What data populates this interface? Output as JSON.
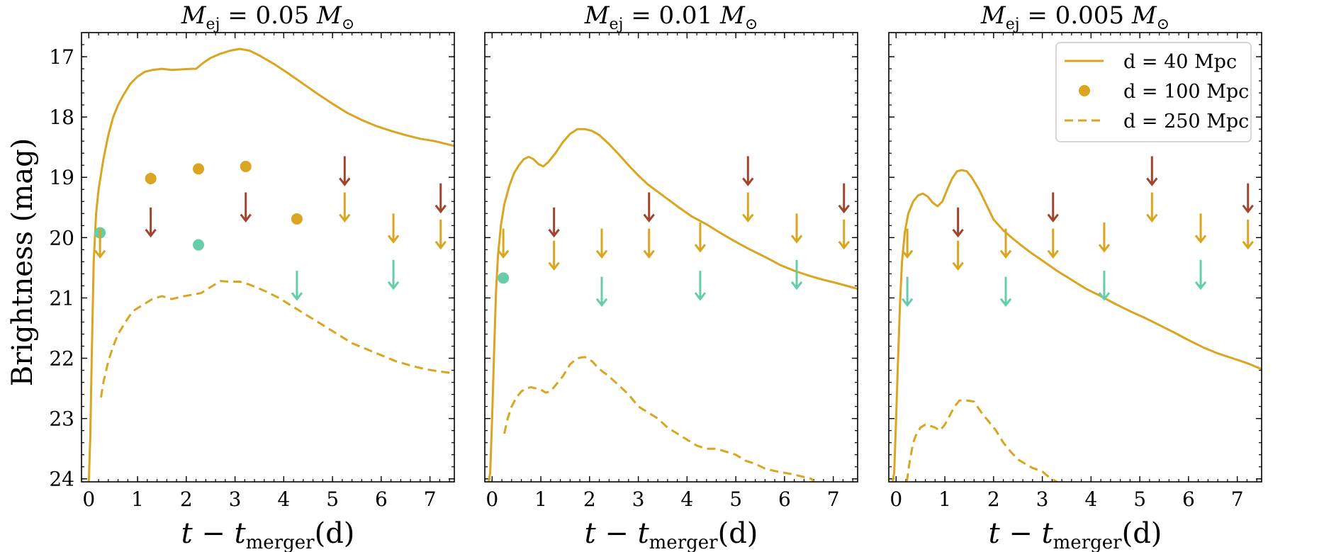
{
  "figure": {
    "ylabel": "Brightness (mag)",
    "xlabel": "t − t",
    "xlabel_sub": "merger",
    "xlabel_tail": "(d)"
  },
  "chart_data": [
    {
      "type": "line",
      "panel_title": {
        "var": "M",
        "sub": "ej",
        "value": " = 0.05 ",
        "unit": "M",
        "unit_sub": "⊙"
      },
      "xlim": [
        -0.15,
        7.5
      ],
      "ylim": [
        24.05,
        16.6
      ],
      "x_ticks": [
        0,
        1,
        2,
        3,
        4,
        5,
        6,
        7
      ],
      "y_ticks": [
        17,
        18,
        19,
        20,
        21,
        22,
        23,
        24
      ],
      "show_y_ticklabels": true,
      "show_ylabel": true,
      "legend": false,
      "series": [
        {
          "name": "d = 40 Mpc",
          "style": "solid",
          "color": "#DAA520",
          "x": [
            0.0,
            0.03,
            0.06,
            0.1,
            0.15,
            0.2,
            0.3,
            0.4,
            0.5,
            0.6,
            0.7,
            0.85,
            1.0,
            1.15,
            1.3,
            1.5,
            1.7,
            1.9,
            2.1,
            2.2,
            2.35,
            2.5,
            2.7,
            2.9,
            3.1,
            3.3,
            3.5,
            3.8,
            4.1,
            4.4,
            4.7,
            5.0,
            5.3,
            5.6,
            5.9,
            6.2,
            6.5,
            6.8,
            7.1,
            7.5
          ],
          "y": [
            24.05,
            23.3,
            22.0,
            20.4,
            19.6,
            19.2,
            18.7,
            18.3,
            18.0,
            17.8,
            17.65,
            17.45,
            17.33,
            17.25,
            17.22,
            17.2,
            17.22,
            17.21,
            17.2,
            17.2,
            17.1,
            17.02,
            16.95,
            16.9,
            16.87,
            16.9,
            16.98,
            17.12,
            17.28,
            17.45,
            17.62,
            17.78,
            17.93,
            18.05,
            18.15,
            18.23,
            18.3,
            18.36,
            18.4,
            18.48
          ]
        },
        {
          "name": "d = 250 Mpc",
          "style": "dashed",
          "color": "#DAA520",
          "x": [
            0.25,
            0.3,
            0.4,
            0.5,
            0.6,
            0.75,
            0.9,
            1.1,
            1.3,
            1.5,
            1.7,
            1.9,
            2.1,
            2.3,
            2.5,
            2.7,
            2.9,
            3.1,
            3.3,
            3.6,
            3.9,
            4.2,
            4.5,
            4.8,
            5.1,
            5.4,
            5.7,
            6.0,
            6.3,
            6.6,
            6.9,
            7.2,
            7.5
          ],
          "y": [
            22.65,
            22.4,
            22.05,
            21.8,
            21.6,
            21.4,
            21.22,
            21.12,
            21.02,
            20.97,
            21.02,
            20.98,
            20.95,
            20.92,
            20.82,
            20.72,
            20.73,
            20.73,
            20.78,
            20.88,
            21.0,
            21.15,
            21.3,
            21.45,
            21.6,
            21.75,
            21.85,
            21.95,
            22.05,
            22.12,
            22.18,
            22.22,
            22.25
          ]
        }
      ],
      "points": [
        {
          "name": "d = 100 Mpc",
          "color": "#DAA520",
          "x": [
            1.27,
            2.25,
            3.22,
            4.27
          ],
          "y": [
            19.02,
            18.86,
            18.82,
            19.69
          ]
        },
        {
          "name": "",
          "color": "#66CDAA",
          "x": [
            0.23,
            2.25
          ],
          "y": [
            19.92,
            20.12
          ]
        }
      ],
      "upper_limits": [
        {
          "color": "#A0452C",
          "x": [
            1.27,
            3.22,
            5.25,
            7.22
          ],
          "y": [
            19.5,
            19.25,
            18.65,
            19.1
          ]
        },
        {
          "color": "#DAA520",
          "x": [
            0.23,
            5.25,
            6.25,
            7.22
          ],
          "y": [
            19.85,
            19.25,
            19.6,
            19.7
          ]
        },
        {
          "color": "#66CDAA",
          "x": [
            4.27,
            6.25
          ],
          "y": [
            20.55,
            20.37
          ]
        }
      ]
    },
    {
      "type": "line",
      "panel_title": {
        "var": "M",
        "sub": "ej",
        "value": " = 0.01 ",
        "unit": "M",
        "unit_sub": "⊙"
      },
      "xlim": [
        -0.15,
        7.5
      ],
      "ylim": [
        24.05,
        16.6
      ],
      "x_ticks": [
        0,
        1,
        2,
        3,
        4,
        5,
        6,
        7
      ],
      "y_ticks": [
        17,
        18,
        19,
        20,
        21,
        22,
        23,
        24
      ],
      "show_y_ticklabels": false,
      "show_ylabel": false,
      "legend": false,
      "series": [
        {
          "name": "d = 40 Mpc",
          "style": "solid",
          "color": "#DAA520",
          "x": [
            -0.07,
            -0.04,
            0.0,
            0.04,
            0.08,
            0.12,
            0.18,
            0.25,
            0.35,
            0.45,
            0.55,
            0.65,
            0.75,
            0.85,
            0.95,
            1.05,
            1.15,
            1.3,
            1.45,
            1.6,
            1.75,
            1.9,
            2.05,
            2.2,
            2.4,
            2.6,
            2.8,
            3.0,
            3.2,
            3.5,
            3.8,
            4.1,
            4.4,
            4.7,
            5.0,
            5.3,
            5.6,
            5.9,
            6.2,
            6.5,
            6.8,
            7.1,
            7.5
          ],
          "y": [
            24.05,
            23.9,
            23.0,
            21.9,
            20.9,
            20.3,
            19.8,
            19.45,
            19.15,
            18.93,
            18.8,
            18.7,
            18.66,
            18.7,
            18.78,
            18.82,
            18.75,
            18.6,
            18.42,
            18.28,
            18.2,
            18.2,
            18.23,
            18.3,
            18.45,
            18.62,
            18.8,
            18.97,
            19.12,
            19.3,
            19.48,
            19.65,
            19.78,
            19.93,
            20.07,
            20.2,
            20.32,
            20.45,
            20.55,
            20.63,
            20.7,
            20.76,
            20.85
          ]
        },
        {
          "name": "d = 250 Mpc",
          "style": "dashed",
          "color": "#DAA520",
          "x": [
            0.25,
            0.32,
            0.4,
            0.5,
            0.6,
            0.7,
            0.8,
            0.9,
            1.0,
            1.1,
            1.2,
            1.3,
            1.45,
            1.6,
            1.75,
            1.9,
            2.05,
            2.2,
            2.4,
            2.6,
            2.8,
            3.0,
            3.2,
            3.4,
            3.6,
            3.8,
            4.0,
            4.2,
            4.4,
            4.6,
            4.8,
            5.0,
            5.2,
            5.4,
            5.6,
            5.8,
            6.0,
            6.2,
            6.4,
            6.55,
            6.65
          ],
          "y": [
            23.25,
            23.0,
            22.8,
            22.65,
            22.55,
            22.5,
            22.48,
            22.5,
            22.52,
            22.57,
            22.55,
            22.45,
            22.3,
            22.1,
            22.0,
            21.98,
            22.05,
            22.18,
            22.3,
            22.45,
            22.6,
            22.8,
            22.9,
            23.0,
            23.15,
            23.25,
            23.35,
            23.45,
            23.5,
            23.5,
            23.55,
            23.6,
            23.7,
            23.75,
            23.83,
            23.87,
            23.9,
            23.93,
            23.97,
            24.0,
            24.1
          ]
        }
      ],
      "points": [
        {
          "name": "d = 100 Mpc",
          "color": "#DAA520",
          "x": [],
          "y": []
        },
        {
          "name": "",
          "color": "#66CDAA",
          "x": [
            0.23
          ],
          "y": [
            20.67
          ]
        }
      ],
      "upper_limits": [
        {
          "color": "#A0452C",
          "x": [
            1.27,
            3.22,
            5.25,
            7.22
          ],
          "y": [
            19.5,
            19.25,
            18.65,
            19.1
          ]
        },
        {
          "color": "#DAA520",
          "x": [
            0.23,
            1.27,
            2.25,
            3.22,
            4.27,
            5.25,
            6.25,
            7.22
          ],
          "y": [
            19.85,
            20.05,
            19.85,
            19.85,
            19.75,
            19.25,
            19.6,
            19.7
          ]
        },
        {
          "color": "#66CDAA",
          "x": [
            2.25,
            4.27,
            6.25
          ],
          "y": [
            20.65,
            20.55,
            20.37
          ]
        }
      ]
    },
    {
      "type": "line",
      "panel_title": {
        "var": "M",
        "sub": "ej",
        "value": " = 0.005 ",
        "unit": "M",
        "unit_sub": "⊙"
      },
      "xlim": [
        -0.15,
        7.5
      ],
      "ylim": [
        24.05,
        16.6
      ],
      "x_ticks": [
        0,
        1,
        2,
        3,
        4,
        5,
        6,
        7
      ],
      "y_ticks": [
        17,
        18,
        19,
        20,
        21,
        22,
        23,
        24
      ],
      "show_y_ticklabels": false,
      "show_ylabel": false,
      "legend": true,
      "legend_location": "top-right",
      "series": [
        {
          "name": "d = 40 Mpc",
          "style": "solid",
          "color": "#DAA520",
          "x": [
            -0.07,
            -0.04,
            0.0,
            0.04,
            0.08,
            0.12,
            0.18,
            0.25,
            0.35,
            0.45,
            0.55,
            0.65,
            0.75,
            0.85,
            0.95,
            1.05,
            1.15,
            1.25,
            1.35,
            1.45,
            1.55,
            1.7,
            1.85,
            2.0,
            2.2,
            2.4,
            2.6,
            2.8,
            3.0,
            3.3,
            3.6,
            3.9,
            4.2,
            4.5,
            4.8,
            5.1,
            5.4,
            5.7,
            6.0,
            6.3,
            6.6,
            6.9,
            7.2,
            7.5
          ],
          "y": [
            24.05,
            23.9,
            23.0,
            22.0,
            21.1,
            20.4,
            19.9,
            19.6,
            19.4,
            19.3,
            19.27,
            19.32,
            19.42,
            19.48,
            19.4,
            19.2,
            19.02,
            18.9,
            18.88,
            18.9,
            19.0,
            19.2,
            19.45,
            19.7,
            19.88,
            20.02,
            20.15,
            20.27,
            20.38,
            20.55,
            20.7,
            20.85,
            20.97,
            21.1,
            21.22,
            21.33,
            21.45,
            21.57,
            21.7,
            21.82,
            21.92,
            22.0,
            22.08,
            22.18
          ]
        },
        {
          "name": "d = 250 Mpc",
          "style": "dashed",
          "color": "#DAA520",
          "x": [
            0.22,
            0.28,
            0.35,
            0.42,
            0.5,
            0.6,
            0.7,
            0.8,
            0.9,
            1.0,
            1.1,
            1.2,
            1.3,
            1.45,
            1.6,
            1.75,
            1.9,
            2.05,
            2.2,
            2.35,
            2.5,
            2.65,
            2.8,
            3.0,
            3.15,
            3.3
          ],
          "y": [
            24.05,
            23.7,
            23.4,
            23.25,
            23.15,
            23.1,
            23.12,
            23.15,
            23.2,
            23.1,
            22.95,
            22.8,
            22.7,
            22.7,
            22.72,
            22.9,
            23.05,
            23.2,
            23.4,
            23.55,
            23.68,
            23.75,
            23.82,
            23.88,
            23.98,
            24.05
          ]
        }
      ],
      "points": [
        {
          "name": "d = 100 Mpc",
          "color": "#DAA520",
          "x": [],
          "y": []
        },
        {
          "name": "",
          "color": "#66CDAA",
          "x": [],
          "y": []
        }
      ],
      "upper_limits": [
        {
          "color": "#A0452C",
          "x": [
            1.27,
            3.22,
            5.25,
            7.22
          ],
          "y": [
            19.5,
            19.25,
            18.65,
            19.1
          ]
        },
        {
          "color": "#DAA520",
          "x": [
            0.23,
            1.27,
            2.25,
            3.22,
            4.27,
            5.25,
            6.25,
            7.22
          ],
          "y": [
            19.85,
            20.05,
            19.85,
            19.85,
            19.75,
            19.25,
            19.6,
            19.7
          ]
        },
        {
          "color": "#66CDAA",
          "x": [
            0.23,
            2.25,
            4.27,
            6.25
          ],
          "y": [
            20.65,
            20.65,
            20.55,
            20.37
          ]
        }
      ]
    }
  ]
}
